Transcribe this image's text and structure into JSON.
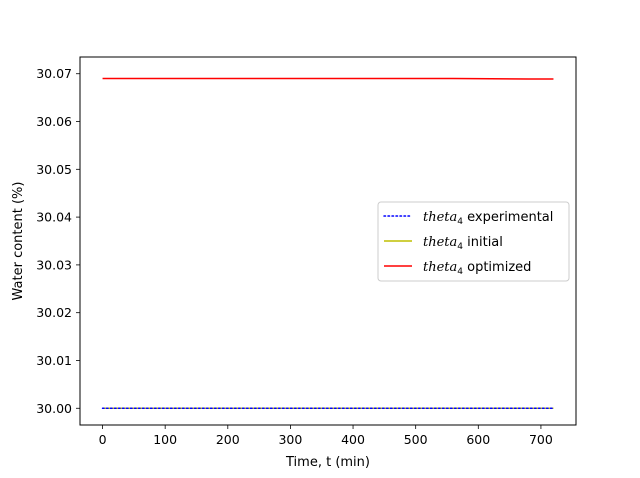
{
  "chart_data": {
    "type": "line",
    "title": "",
    "xlabel": "Time, t (min)",
    "ylabel": "Water content (%)",
    "xlim": [
      -36,
      756
    ],
    "ylim": [
      29.9965,
      30.0735
    ],
    "xticks": [
      0,
      100,
      200,
      300,
      400,
      500,
      600,
      700
    ],
    "yticks": [
      30.0,
      30.01,
      30.02,
      30.03,
      30.04,
      30.05,
      30.06,
      30.07
    ],
    "ytick_labels": [
      "30.00",
      "30.01",
      "30.02",
      "30.03",
      "30.04",
      "30.05",
      "30.06",
      "30.07"
    ],
    "grid": false,
    "legend_position": "center-right",
    "series": [
      {
        "name": "theta",
        "name_subscript": "4",
        "name_suffix": " experimental",
        "color": "#0000ff",
        "style": "dotted",
        "x": [
          0,
          720
        ],
        "y": [
          30.0,
          30.0
        ]
      },
      {
        "name": "theta",
        "name_subscript": "4",
        "name_suffix": " initial",
        "color": "#bfbf00",
        "style": "solid",
        "x": [
          0,
          720
        ],
        "y": [
          30.0,
          30.0
        ]
      },
      {
        "name": "theta",
        "name_subscript": "4",
        "name_suffix": " optimized",
        "color": "#ff0000",
        "style": "solid",
        "x": [
          0,
          100,
          200,
          300,
          400,
          500,
          560,
          620,
          680,
          720
        ],
        "y": [
          30.069,
          30.069,
          30.069,
          30.069,
          30.069,
          30.069,
          30.069,
          30.06895,
          30.0689,
          30.0689
        ]
      }
    ]
  }
}
